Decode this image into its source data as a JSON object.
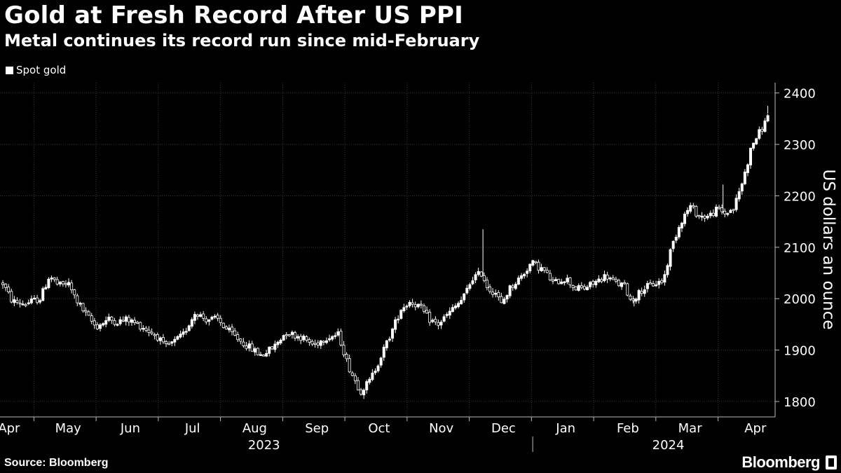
{
  "header": {
    "title": "Gold at Fresh Record After US PPI",
    "subtitle": "Metal continues its record run since mid-February"
  },
  "legend": {
    "label": "Spot gold"
  },
  "footer": {
    "source": "Source: Bloomberg",
    "brand": "Bloomberg"
  },
  "colors": {
    "background": "#000000",
    "foreground": "#ffffff",
    "gridline": "#3a3a3a"
  },
  "chart_data": {
    "type": "candlestick",
    "title": "Gold at Fresh Record After US PPI",
    "subtitle": "Metal continues its record run since mid-February",
    "series_name": "Spot gold",
    "ylabel": "US dollars an ounce",
    "ylim": [
      1770,
      2420
    ],
    "yticks": [
      1800,
      1900,
      2000,
      2100,
      2200,
      2300,
      2400
    ],
    "y_axis_position": "right",
    "xlim": [
      0,
      12.35
    ],
    "month_labels": [
      {
        "label": "Apr",
        "x": 0.1
      },
      {
        "label": "May",
        "x": 1.05
      },
      {
        "label": "Jun",
        "x": 2.05
      },
      {
        "label": "Jul",
        "x": 3.05
      },
      {
        "label": "Aug",
        "x": 4.05
      },
      {
        "label": "Sep",
        "x": 5.05
      },
      {
        "label": "Oct",
        "x": 6.05
      },
      {
        "label": "Nov",
        "x": 7.05
      },
      {
        "label": "Dec",
        "x": 8.05
      },
      {
        "label": "Jan",
        "x": 9.05
      },
      {
        "label": "Feb",
        "x": 10.05
      },
      {
        "label": "Mar",
        "x": 11.05
      },
      {
        "label": "Apr",
        "x": 12.1
      }
    ],
    "month_boundaries": [
      0.5,
      1.5,
      2.5,
      3.5,
      4.5,
      5.5,
      6.5,
      7.5,
      8.5,
      9.5,
      10.5,
      11.5
    ],
    "year_labels": [
      {
        "label": "2023",
        "x": 4.2
      },
      {
        "label": "2024",
        "x": 10.7
      }
    ],
    "year_divider_x": 8.52,
    "anchor_points": [
      [
        0.0,
        2030
      ],
      [
        0.15,
        1995
      ],
      [
        0.35,
        1990
      ],
      [
        0.6,
        2000
      ],
      [
        0.75,
        2045
      ],
      [
        0.9,
        2025
      ],
      [
        1.05,
        2030
      ],
      [
        1.15,
        2005
      ],
      [
        1.3,
        1975
      ],
      [
        1.5,
        1945
      ],
      [
        1.7,
        1960
      ],
      [
        1.85,
        1955
      ],
      [
        2.0,
        1960
      ],
      [
        2.25,
        1945
      ],
      [
        2.5,
        1925
      ],
      [
        2.6,
        1905
      ],
      [
        2.75,
        1915
      ],
      [
        2.9,
        1930
      ],
      [
        3.1,
        1975
      ],
      [
        3.25,
        1960
      ],
      [
        3.45,
        1960
      ],
      [
        3.6,
        1940
      ],
      [
        3.85,
        1915
      ],
      [
        4.15,
        1890
      ],
      [
        4.35,
        1905
      ],
      [
        4.55,
        1935
      ],
      [
        4.8,
        1925
      ],
      [
        5.0,
        1910
      ],
      [
        5.2,
        1925
      ],
      [
        5.4,
        1930
      ],
      [
        5.55,
        1870
      ],
      [
        5.75,
        1820
      ],
      [
        5.9,
        1840
      ],
      [
        6.05,
        1880
      ],
      [
        6.25,
        1935
      ],
      [
        6.4,
        1980
      ],
      [
        6.55,
        1995
      ],
      [
        6.7,
        1985
      ],
      [
        6.85,
        1960
      ],
      [
        7.0,
        1950
      ],
      [
        7.2,
        1975
      ],
      [
        7.4,
        2000
      ],
      [
        7.55,
        2040
      ],
      [
        7.7,
        2050
      ],
      [
        7.8,
        2020
      ],
      [
        7.95,
        2010
      ],
      [
        8.0,
        1985
      ],
      [
        8.15,
        2020
      ],
      [
        8.35,
        2045
      ],
      [
        8.5,
        2070
      ],
      [
        8.7,
        2055
      ],
      [
        8.85,
        2030
      ],
      [
        9.05,
        2040
      ],
      [
        9.2,
        2020
      ],
      [
        9.35,
        2020
      ],
      [
        9.5,
        2030
      ],
      [
        9.7,
        2045
      ],
      [
        9.85,
        2030
      ],
      [
        10.0,
        2025
      ],
      [
        10.1,
        1995
      ],
      [
        10.3,
        2020
      ],
      [
        10.5,
        2030
      ],
      [
        10.62,
        2035
      ],
      [
        10.75,
        2100
      ],
      [
        10.9,
        2150
      ],
      [
        11.05,
        2180
      ],
      [
        11.2,
        2160
      ],
      [
        11.35,
        2160
      ],
      [
        11.5,
        2175
      ],
      [
        11.6,
        2165
      ],
      [
        11.75,
        2175
      ],
      [
        11.9,
        2230
      ],
      [
        12.05,
        2300
      ],
      [
        12.15,
        2320
      ],
      [
        12.25,
        2340
      ],
      [
        12.3,
        2360
      ]
    ],
    "notable_wicks": [
      [
        7.72,
        2135
      ],
      [
        11.58,
        2222
      ],
      [
        12.3,
        2375
      ],
      [
        10.15,
        1985
      ]
    ],
    "summary": {
      "low": 1812,
      "low_month": "Oct 2023",
      "record_high": 2375,
      "record_month": "Apr 2024"
    }
  }
}
